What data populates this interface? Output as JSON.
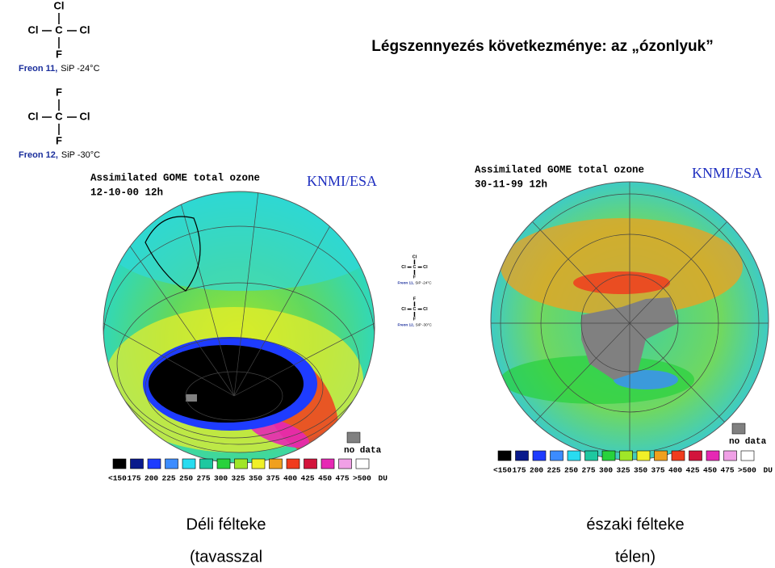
{
  "title": "Légszennyezés következménye: az „ózonlyuk”",
  "freons": [
    {
      "top": "Cl",
      "left": "Cl",
      "center": "C",
      "right": "Cl",
      "bottom": "F",
      "name": "Freon 11,",
      "boiling": "SiP -24°C"
    },
    {
      "top": "F",
      "left": "Cl",
      "center": "C",
      "right": "Cl",
      "bottom": "F",
      "name": "Freon 12,",
      "boiling": "SiP -30°C"
    }
  ],
  "scale_colors": [
    "#000000",
    "#0a1a8c",
    "#1e3cff",
    "#3c8cff",
    "#28dcf0",
    "#1ec8a0",
    "#28d23c",
    "#a0e628",
    "#f0f028",
    "#f0a01e",
    "#f03c1e",
    "#d2143c",
    "#e628b4",
    "#f0a0e6",
    "#ffffff"
  ],
  "maps": [
    {
      "heading": "Assimilated GOME total ozone",
      "date": "12-10-00 12h",
      "credit": "KNMI/ESA",
      "no_data": "no data",
      "scale": [
        "<150",
        "175",
        "200",
        "225",
        "250",
        "275",
        "300",
        "325",
        "350",
        "375",
        "400",
        "425",
        "450",
        "475",
        ">500",
        "DU"
      ],
      "caption": [
        "Déli félteke",
        "(tavasszal"
      ]
    },
    {
      "heading": "Assimilated GOME total ozone",
      "date": "30-11-99 12h",
      "credit": "KNMI/ESA",
      "no_data": "no data",
      "scale": [
        "<150",
        "175",
        "200",
        "225",
        "250",
        "275",
        "300",
        "325",
        "350",
        "375",
        "400",
        "425",
        "450",
        "475",
        ">500",
        "DU"
      ],
      "caption": [
        "északi félteke",
        "télen)"
      ]
    }
  ]
}
